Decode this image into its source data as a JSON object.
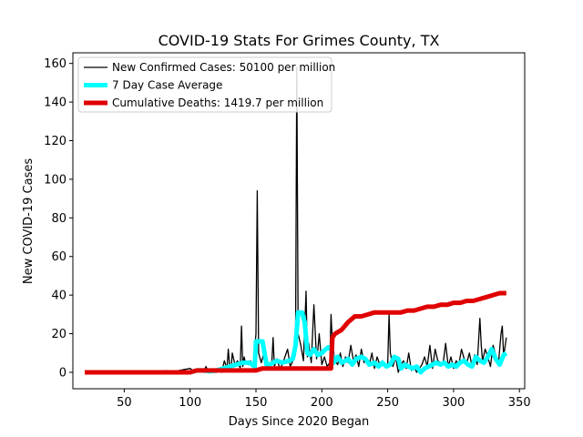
{
  "chart_data": {
    "type": "line",
    "title": "COVID-19 Stats For Grimes County, TX",
    "xlabel": "Days Since 2020 Began",
    "ylabel": "New COVID-19 Cases",
    "xlim": [
      11,
      354
    ],
    "ylim": [
      -8.5,
      165.5
    ],
    "xticks": [
      50,
      100,
      150,
      200,
      250,
      300,
      350
    ],
    "yticks": [
      0,
      20,
      40,
      60,
      80,
      100,
      120,
      140,
      160
    ],
    "grid": false,
    "legend_position": "top-left",
    "series": [
      {
        "name": "New Confirmed Cases: 50100 per million",
        "color": "#000000",
        "style": "thin",
        "x": [
          20,
          60,
          80,
          82,
          84,
          100,
          104,
          108,
          110,
          112,
          114,
          116,
          118,
          120,
          122,
          124,
          126,
          128,
          129,
          130,
          131,
          132,
          134,
          136,
          138,
          139,
          140,
          141,
          142,
          144,
          146,
          148,
          150,
          151,
          152,
          154,
          156,
          158,
          160,
          162,
          163,
          164,
          166,
          168,
          170,
          172,
          174,
          176,
          178,
          180,
          181,
          182,
          184,
          186,
          188,
          189,
          190,
          192,
          194,
          196,
          197,
          198,
          200,
          202,
          204,
          206,
          207,
          208,
          210,
          212,
          214,
          216,
          218,
          220,
          222,
          224,
          226,
          228,
          230,
          232,
          234,
          236,
          238,
          240,
          242,
          244,
          246,
          248,
          250,
          251,
          252,
          254,
          256,
          258,
          260,
          262,
          264,
          266,
          268,
          270,
          272,
          274,
          276,
          278,
          280,
          282,
          284,
          286,
          288,
          290,
          292,
          294,
          296,
          298,
          300,
          302,
          304,
          306,
          308,
          310,
          312,
          314,
          316,
          318,
          320,
          321,
          322,
          324,
          326,
          328,
          330,
          332,
          334,
          336,
          337,
          338,
          340
        ],
        "y": [
          0,
          0,
          0,
          1,
          0,
          2,
          0,
          1,
          0,
          3,
          0,
          1,
          0,
          0,
          2,
          0,
          6,
          2,
          12,
          3,
          1,
          10,
          4,
          6,
          2,
          24,
          3,
          8,
          5,
          4,
          6,
          3,
          20,
          94,
          10,
          5,
          10,
          8,
          2,
          5,
          18,
          3,
          7,
          2,
          4,
          8,
          12,
          3,
          6,
          9,
          158,
          20,
          14,
          6,
          42,
          8,
          15,
          5,
          35,
          7,
          12,
          20,
          4,
          8,
          3,
          5,
          30,
          15,
          6,
          4,
          10,
          3,
          8,
          5,
          14,
          6,
          9,
          3,
          12,
          5,
          7,
          4,
          10,
          2,
          8,
          4,
          6,
          3,
          4,
          30,
          10,
          3,
          8,
          0,
          4,
          6,
          2,
          10,
          1,
          3,
          0,
          2,
          4,
          8,
          3,
          14,
          2,
          12,
          6,
          5,
          4,
          15,
          3,
          8,
          2,
          6,
          4,
          12,
          7,
          5,
          10,
          3,
          9,
          4,
          28,
          14,
          6,
          12,
          8,
          3,
          14,
          9,
          4,
          20,
          24,
          8,
          18
        ]
      },
      {
        "name": "7 Day Case Average",
        "color": "#00FFFF",
        "style": "thick",
        "x": [
          20,
          100,
          105,
          110,
          115,
          120,
          125,
          130,
          135,
          140,
          145,
          149,
          150,
          151,
          155,
          158,
          160,
          163,
          166,
          170,
          175,
          178,
          180,
          182,
          185,
          187,
          189,
          191,
          194,
          197,
          200,
          203,
          205,
          207,
          209,
          212,
          215,
          218,
          220,
          223,
          226,
          230,
          233,
          236,
          240,
          243,
          246,
          249,
          252,
          255,
          258,
          260,
          263,
          266,
          269,
          272,
          275,
          278,
          281,
          284,
          287,
          290,
          293,
          296,
          299,
          302,
          305,
          308,
          311,
          314,
          317,
          320,
          323,
          326,
          329,
          332,
          335,
          338,
          340
        ],
        "y": [
          0,
          0,
          1,
          1,
          0.5,
          1,
          2,
          3,
          4,
          5,
          5,
          3,
          16,
          16,
          16,
          4,
          4,
          5,
          6,
          5,
          6,
          7,
          14,
          31,
          31,
          26,
          10,
          9,
          12,
          9,
          10,
          12,
          13,
          12,
          5,
          8,
          5,
          6,
          7,
          4,
          7,
          8,
          7,
          4,
          5,
          3,
          5,
          3,
          4,
          8,
          7,
          2,
          4,
          3,
          2,
          3,
          0,
          2,
          3,
          4,
          5,
          4,
          5,
          3,
          4,
          3,
          5,
          6,
          4,
          3,
          8,
          6,
          5,
          8,
          12,
          7,
          4,
          9,
          10
        ]
      },
      {
        "name": "Cumulative Deaths: 1419.7 per million",
        "color": "#E00000",
        "style": "thick",
        "x": [
          20,
          100,
          105,
          150,
          155,
          200,
          207,
          208,
          210,
          215,
          220,
          225,
          230,
          235,
          240,
          245,
          250,
          255,
          260,
          265,
          270,
          275,
          280,
          285,
          290,
          295,
          300,
          305,
          310,
          315,
          320,
          325,
          330,
          335,
          340
        ],
        "y": [
          0,
          0,
          1,
          1,
          2,
          2,
          2,
          18,
          20,
          22,
          26,
          29,
          29,
          30,
          31,
          31,
          31,
          31,
          31,
          32,
          32,
          33,
          34,
          34,
          35,
          35,
          36,
          36,
          37,
          37,
          38,
          39,
          40,
          41,
          41
        ]
      }
    ]
  }
}
